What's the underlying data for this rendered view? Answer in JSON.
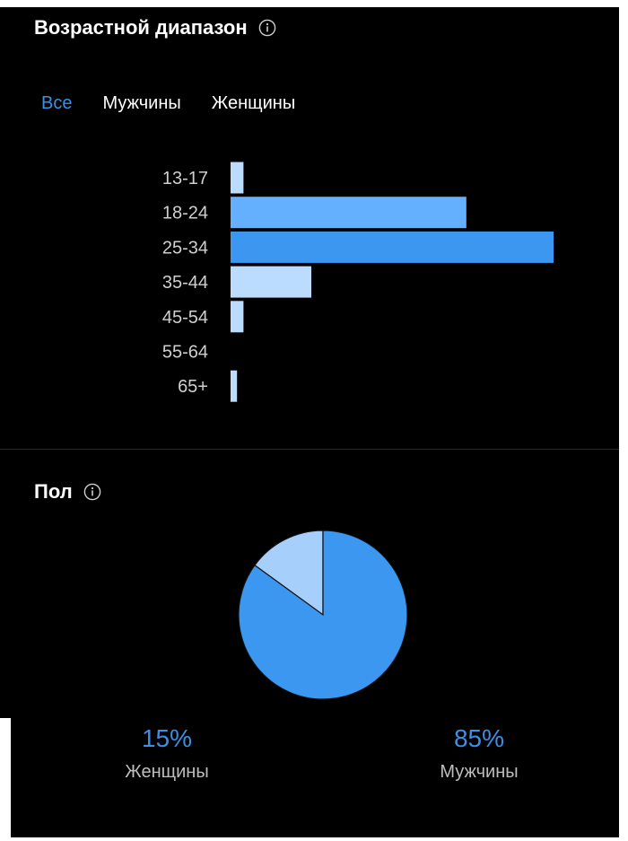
{
  "age_section": {
    "title": "Возрастной диапазон",
    "info_icon": "info-icon",
    "tabs": [
      {
        "label": "Все",
        "active": true
      },
      {
        "label": "Мужчины",
        "active": false
      },
      {
        "label": "Женщины",
        "active": false
      }
    ]
  },
  "sex_section": {
    "title": "Пол",
    "info_icon": "info-icon",
    "women": {
      "percent": "15%",
      "label": "Женщины"
    },
    "men": {
      "percent": "85%",
      "label": "Мужчины"
    }
  },
  "colors": {
    "background": "#000000",
    "accent": "#3b8fe6",
    "bar_dark": "#3b97ef",
    "bar_mid": "#64b0ff",
    "bar_light": "#bcdcff",
    "pie_major": "#3b97ef",
    "pie_minor": "#a7cffc"
  },
  "chart_data": [
    {
      "type": "bar",
      "orientation": "horizontal",
      "categories": [
        "13-17",
        "18-24",
        "25-34",
        "35-44",
        "45-54",
        "55-64",
        "65+"
      ],
      "values": [
        4,
        73,
        100,
        25,
        4,
        0,
        2
      ],
      "bar_colors": [
        "#bcdcff",
        "#64b0ff",
        "#3b97ef",
        "#bcdcff",
        "#bcdcff",
        "#bcdcff",
        "#bcdcff"
      ],
      "xlim": [
        0,
        100
      ],
      "title": "",
      "xlabel": "",
      "ylabel": ""
    },
    {
      "type": "pie",
      "categories": [
        "Женщины",
        "Мужчины"
      ],
      "values": [
        15,
        85
      ],
      "colors": [
        "#a7cffc",
        "#3b97ef"
      ]
    }
  ]
}
